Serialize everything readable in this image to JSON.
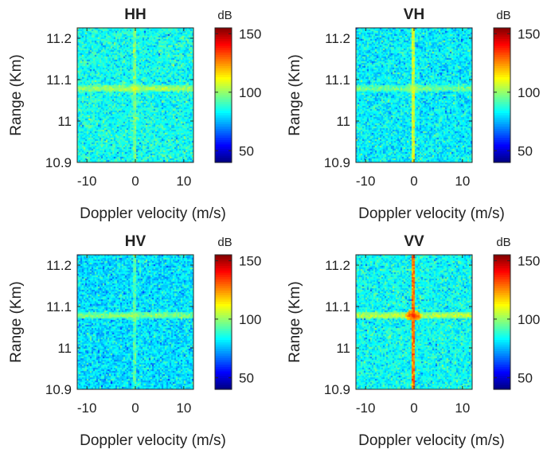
{
  "chart_data": [
    {
      "type": "heatmap",
      "title": "HH",
      "xlabel": "Doppler velocity (m/s)",
      "ylabel": "Range (Km)",
      "xlim": [
        -12,
        12
      ],
      "ylim": [
        10.9,
        11.225
      ],
      "xticks": [
        -10,
        0,
        10
      ],
      "xtick_labels": [
        "-10",
        "0",
        "10"
      ],
      "yticks": [
        10.9,
        11,
        11.1,
        11.2
      ],
      "ytick_labels": [
        "10.9",
        "11",
        "11.1",
        "11.2"
      ],
      "colorbar": {
        "label": "dB",
        "range": [
          40,
          155
        ],
        "ticks": [
          50,
          100,
          150
        ],
        "tick_labels": [
          "50",
          "100",
          "150"
        ],
        "colormap": "jet"
      },
      "background_level": 85,
      "range_band": {
        "range": 11.08,
        "level": 103
      },
      "zero_doppler_line": {
        "velocity": -0.3,
        "level": 102
      },
      "target": {
        "velocity": -0.3,
        "range": 11.08,
        "level": 112
      }
    },
    {
      "type": "heatmap",
      "title": "VH",
      "xlabel": "Doppler velocity (m/s)",
      "ylabel": "Range (Km)",
      "xlim": [
        -12,
        12
      ],
      "ylim": [
        10.9,
        11.225
      ],
      "xticks": [
        -10,
        0,
        10
      ],
      "xtick_labels": [
        "-10",
        "0",
        "10"
      ],
      "yticks": [
        10.9,
        11,
        11.1,
        11.2
      ],
      "ytick_labels": [
        "10.9",
        "11",
        "11.1",
        "11.2"
      ],
      "colorbar": {
        "label": "dB",
        "range": [
          40,
          155
        ],
        "ticks": [
          50,
          100,
          150
        ],
        "tick_labels": [
          "50",
          "100",
          "150"
        ],
        "colormap": "jet"
      },
      "background_level": 82,
      "range_band": {
        "range": 11.08,
        "level": 98
      },
      "zero_doppler_line": {
        "velocity": -0.3,
        "level": 112
      },
      "target": {
        "velocity": -0.3,
        "range": 11.08,
        "level": 110
      }
    },
    {
      "type": "heatmap",
      "title": "HV",
      "xlabel": "Doppler velocity (m/s)",
      "ylabel": "Range (Km)",
      "xlim": [
        -12,
        12
      ],
      "ylim": [
        10.9,
        11.225
      ],
      "xticks": [
        -10,
        0,
        10
      ],
      "xtick_labels": [
        "-10",
        "0",
        "10"
      ],
      "yticks": [
        10.9,
        11,
        11.1,
        11.2
      ],
      "ytick_labels": [
        "10.9",
        "11",
        "11.1",
        "11.2"
      ],
      "colorbar": {
        "label": "dB",
        "range": [
          40,
          155
        ],
        "ticks": [
          50,
          100,
          150
        ],
        "tick_labels": [
          "50",
          "100",
          "150"
        ],
        "colormap": "jet"
      },
      "background_level": 80,
      "range_band": {
        "range": 11.08,
        "level": 99
      },
      "zero_doppler_line": {
        "velocity": -0.3,
        "level": 98
      },
      "target": {
        "velocity": -0.3,
        "range": 11.08,
        "level": 104
      }
    },
    {
      "type": "heatmap",
      "title": "VV",
      "xlabel": "Doppler velocity (m/s)",
      "ylabel": "Range (Km)",
      "xlim": [
        -12,
        12
      ],
      "ylim": [
        10.9,
        11.225
      ],
      "xticks": [
        -10,
        0,
        10
      ],
      "xtick_labels": [
        "-10",
        "0",
        "10"
      ],
      "yticks": [
        10.9,
        11,
        11.1,
        11.2
      ],
      "ytick_labels": [
        "10.9",
        "11",
        "11.1",
        "11.2"
      ],
      "colorbar": {
        "label": "dB",
        "range": [
          40,
          155
        ],
        "ticks": [
          50,
          100,
          150
        ],
        "tick_labels": [
          "50",
          "100",
          "150"
        ],
        "colormap": "jet"
      },
      "background_level": 84,
      "range_band": {
        "range": 11.08,
        "level": 106
      },
      "zero_doppler_line": {
        "velocity": -0.3,
        "level": 133
      },
      "target": {
        "velocity": -0.3,
        "range": 11.08,
        "level": 138
      }
    }
  ]
}
